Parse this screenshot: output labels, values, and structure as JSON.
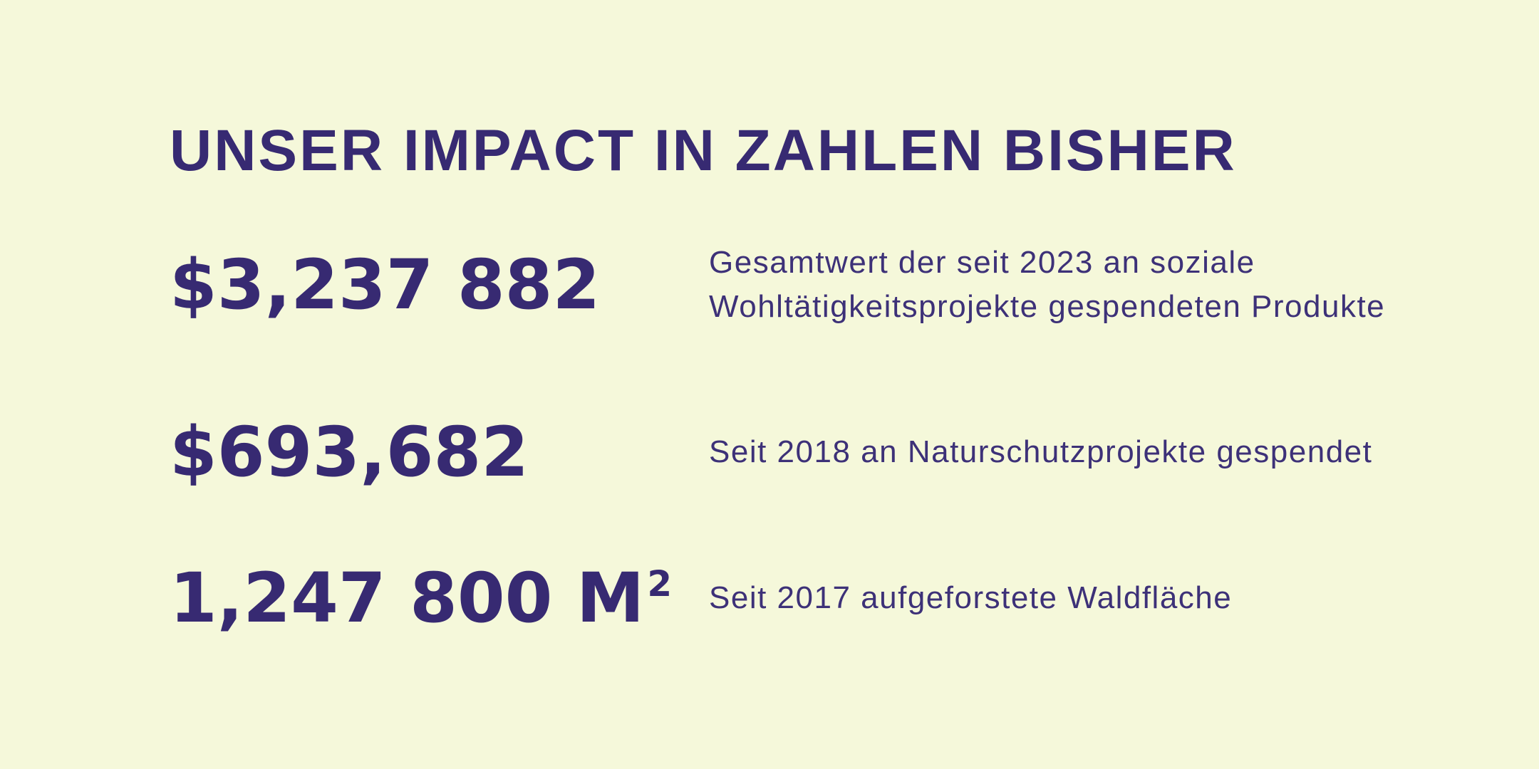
{
  "page": {
    "background_color": "#f5f8da",
    "accent_color": "#372a72"
  },
  "title": "UNSER IMPACT IN ZAHLEN BISHER",
  "stats": [
    {
      "value": "$3,237 882",
      "superscript": "",
      "description": "Gesamtwert der seit 2023 an soziale Wohltätigkeitsprojekte gespendeten Produkte"
    },
    {
      "value": "$693,682",
      "superscript": "",
      "description": "Seit 2018 an Naturschutzprojekte gespendet"
    },
    {
      "value": "1,247 800 M",
      "superscript": "2",
      "description": "Seit 2017 aufgeforstete Waldfläche"
    }
  ]
}
